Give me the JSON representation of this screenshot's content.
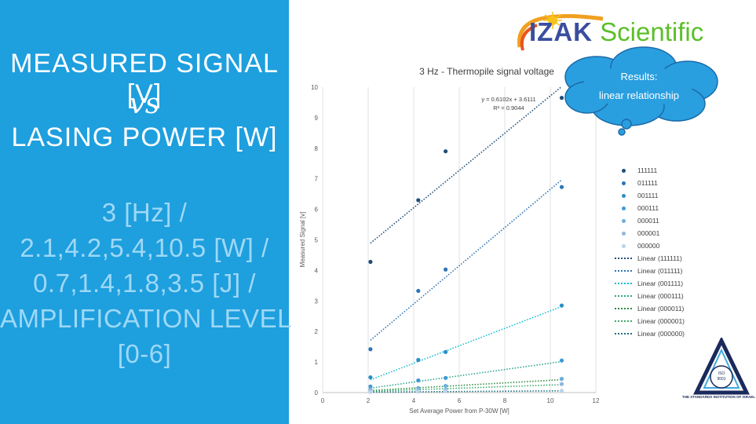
{
  "slide": {
    "headline_line1": "MEASURED SIGNAL [V]",
    "vs": "vs",
    "headline_line2": "LASING POWER [W]",
    "params": [
      "3 [Hz] /",
      "2.1,4.2,5.4,10.5 [W] /",
      "0.7,1.4,1.8,3.5 [J] /",
      "AMPLIFICATION LEVEL",
      "[0-6]"
    ],
    "panel_color": "#1e9fde"
  },
  "logo": {
    "izak": "IZAK",
    "scientific": "Scientific"
  },
  "callout": {
    "line1": "Results:",
    "line2": "linear relationship"
  },
  "certification": {
    "caption": "THE STANDARDS INSTITUTION OF ISRAEL"
  },
  "chart_data": {
    "type": "scatter",
    "title": "3 Hz - Thermopile signal voltage",
    "xlabel": "Set Average Power from P-30W [W]",
    "ylabel": "Measured Signal [v]",
    "xlim": [
      0,
      12
    ],
    "ylim": [
      0,
      10
    ],
    "xticks": [
      0,
      2,
      4,
      6,
      8,
      10,
      12
    ],
    "yticks": [
      0,
      1,
      2,
      3,
      4,
      5,
      6,
      7,
      8,
      9,
      10
    ],
    "grid": "vertical",
    "legend_position": "right",
    "x": [
      2.1,
      4.2,
      5.4,
      10.5
    ],
    "series": [
      {
        "name": "111111",
        "values": [
          4.28,
          6.3,
          7.9,
          9.65
        ],
        "color": "#1f4e79"
      },
      {
        "name": "011111",
        "values": [
          1.42,
          3.33,
          4.03,
          6.73
        ],
        "color": "#2e75b6"
      },
      {
        "name": "001111",
        "values": [
          0.5,
          1.07,
          1.33,
          2.85
        ],
        "color": "#2a8fc9"
      },
      {
        "name": "000111",
        "values": [
          0.2,
          0.4,
          0.48,
          1.05
        ],
        "color": "#3d9ad8"
      },
      {
        "name": "000011",
        "values": [
          0.1,
          0.15,
          0.22,
          0.45
        ],
        "color": "#6aaedc"
      },
      {
        "name": "000001",
        "values": [
          0.06,
          0.08,
          0.1,
          0.28
        ],
        "color": "#8fb8dc"
      },
      {
        "name": "000000",
        "values": [
          0.02,
          0.03,
          0.04,
          0.06
        ],
        "color": "#b9d3ea"
      }
    ],
    "trendlines": [
      {
        "name": "Linear (111111)",
        "slope": 0.6102,
        "intercept": 3.6111,
        "color": "#1f4e79"
      },
      {
        "name": "Linear (011111)",
        "slope": 0.6251,
        "intercept": 0.403,
        "color": "#2e75b6"
      },
      {
        "name": "Linear (001111)",
        "slope": 0.2855,
        "intercept": -0.18,
        "color": "#17becf"
      },
      {
        "name": "Linear (000111)",
        "slope": 0.1033,
        "intercept": -0.07,
        "color": "#2ca58d"
      },
      {
        "name": "Linear (000011)",
        "slope": 0.0422,
        "intercept": -0.02,
        "color": "#2e8b3e"
      },
      {
        "name": "Linear (000001)",
        "slope": 0.0258,
        "intercept": -0.01,
        "color": "#3aa86b"
      },
      {
        "name": "Linear (000000)",
        "slope": 0.005,
        "intercept": 0.005,
        "color": "#1a6e80"
      }
    ],
    "equation_label": "y = 0.6102x + 3.6111",
    "r2_label": "R² = 0.9044"
  }
}
